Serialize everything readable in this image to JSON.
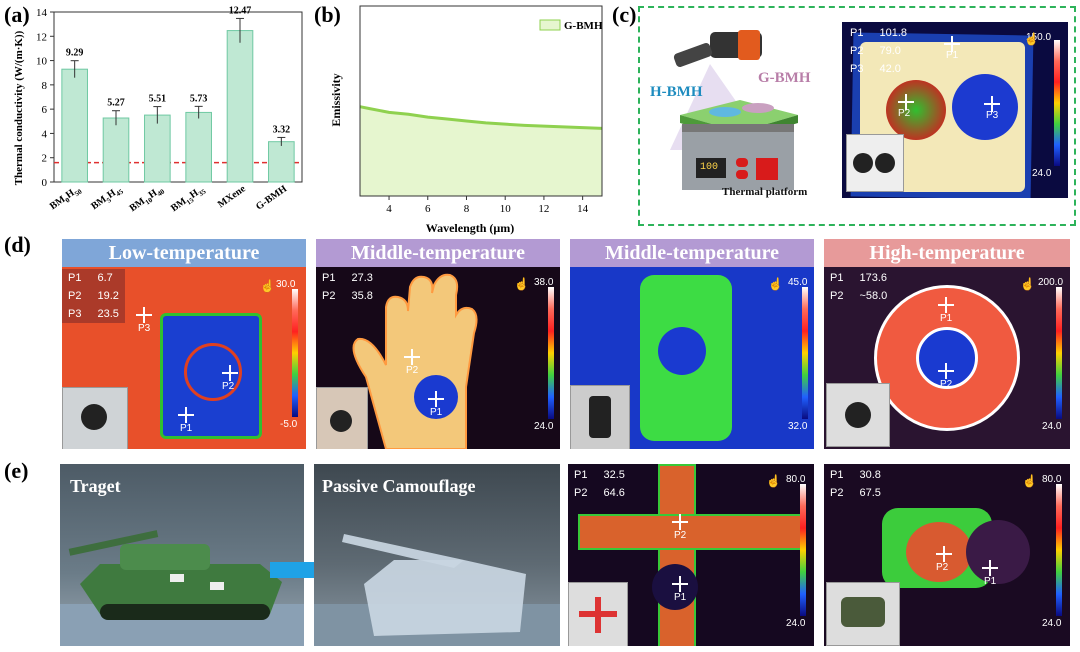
{
  "panels": {
    "a": "(a)",
    "b": "(b)",
    "c": "(c)",
    "d": "(d)",
    "e": "(e)"
  },
  "chart_data": [
    {
      "type": "bar",
      "panel": "a",
      "ylabel": "Thermal conductivity (W/(m·K))",
      "ylim": [
        0,
        14
      ],
      "yticks": [
        0,
        2,
        4,
        6,
        8,
        10,
        12,
        14
      ],
      "categories": [
        "BM0H50",
        "BM5H45",
        "BM10H40",
        "BM15H35",
        "MXene",
        "G-BMH"
      ],
      "category_labels": [
        {
          "base": "BM",
          "s1": "0",
          "mid": "H",
          "s2": "50"
        },
        {
          "base": "BM",
          "s1": "5",
          "mid": "H",
          "s2": "45"
        },
        {
          "base": "BM",
          "s1": "10",
          "mid": "H",
          "s2": "40"
        },
        {
          "base": "BM",
          "s1": "15",
          "mid": "H",
          "s2": "35"
        },
        {
          "base": "MXene",
          "s1": "",
          "mid": "",
          "s2": ""
        },
        {
          "base": "G-BMH",
          "s1": "",
          "mid": "",
          "s2": ""
        }
      ],
      "values": [
        9.29,
        5.27,
        5.51,
        5.73,
        12.47,
        3.32
      ],
      "value_labels": [
        "9.29",
        "5.27",
        "5.51",
        "5.73",
        "12.47",
        "3.32"
      ],
      "errors": [
        0.7,
        0.6,
        0.7,
        0.5,
        1.0,
        0.35
      ],
      "reference_line": 1.6,
      "bar_color": "#bfe8d3",
      "bar_edge": "#6fc9a3",
      "ref_color": "#e03030"
    },
    {
      "type": "area",
      "panel": "b",
      "xlabel": "Wavelength (μm)",
      "ylabel": "Emissivity",
      "xlim": [
        2.5,
        15
      ],
      "ylim": [
        0,
        1
      ],
      "xticks": [
        4,
        6,
        8,
        10,
        12,
        14
      ],
      "series": [
        {
          "name": "G-BMH",
          "x": [
            2.5,
            3,
            4,
            5,
            6,
            7,
            8,
            9,
            10,
            11,
            12,
            13,
            14,
            15
          ],
          "y": [
            0.47,
            0.46,
            0.44,
            0.43,
            0.415,
            0.405,
            0.395,
            0.385,
            0.378,
            0.372,
            0.368,
            0.364,
            0.36,
            0.356
          ]
        }
      ],
      "fill_color": "#e6f6cf",
      "line_color": "#8fd14f"
    }
  ],
  "panel_c": {
    "h_bmh": "H-BMH",
    "g_bmh": "G-BMH",
    "platform": "Thermal platform",
    "display": "100",
    "readouts": [
      {
        "k": "P1",
        "v": "101.8"
      },
      {
        "k": "P2",
        "v": "79.0"
      },
      {
        "k": "P3",
        "v": "42.0"
      }
    ],
    "scale_max": "150.0",
    "scale_min": "24.0",
    "points": [
      "P1",
      "P2",
      "P3"
    ]
  },
  "panel_d": [
    {
      "title": "Low-temperature",
      "title_bg": "#7fa6d8",
      "readouts": [
        {
          "k": "P1",
          "v": "6.7"
        },
        {
          "k": "P2",
          "v": "19.2"
        },
        {
          "k": "P3",
          "v": "23.5"
        }
      ],
      "scale_max": "30.0",
      "scale_min": "-5.0",
      "points": [
        "P1",
        "P2",
        "P3"
      ]
    },
    {
      "title": "Middle-temperature",
      "title_bg": "#b39ad3",
      "readouts": [
        {
          "k": "P1",
          "v": "27.3"
        },
        {
          "k": "P2",
          "v": "35.8"
        }
      ],
      "scale_max": "38.0",
      "scale_min": "24.0",
      "points": [
        "P1",
        "P2"
      ]
    },
    {
      "title": "Middle-temperature",
      "title_bg": "#b39ad3",
      "readouts": [],
      "scale_max": "45.0",
      "scale_min": "32.0",
      "points": []
    },
    {
      "title": "High-temperature",
      "title_bg": "#e79a9a",
      "readouts": [
        {
          "k": "P1",
          "v": "173.6"
        },
        {
          "k": "P2",
          "v": "~58.0"
        }
      ],
      "scale_max": "200.0",
      "scale_min": "24.0",
      "points": [
        "P1",
        "P2"
      ]
    }
  ],
  "panel_e": {
    "target_label": "Traget",
    "camo_label": "Passive Camouflage",
    "plane": {
      "readouts": [
        {
          "k": "P1",
          "v": "32.5"
        },
        {
          "k": "P2",
          "v": "64.6"
        }
      ],
      "scale_max": "80.0",
      "scale_min": "24.0",
      "points": [
        "P2",
        "P1"
      ]
    },
    "tank": {
      "readouts": [
        {
          "k": "P1",
          "v": "30.8"
        },
        {
          "k": "P2",
          "v": "67.5"
        }
      ],
      "scale_max": "80.0",
      "scale_min": "24.0",
      "points": [
        "P2",
        "P1"
      ]
    }
  }
}
